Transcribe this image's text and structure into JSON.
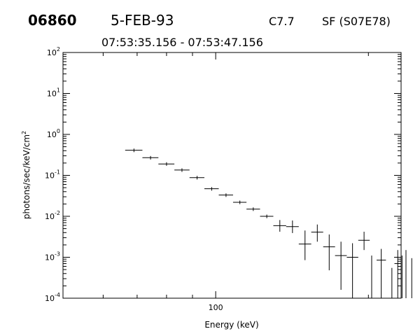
{
  "header": {
    "event_id": "06860",
    "date": "5-FEB-93",
    "goes_class": "C7.7",
    "location": "SF (S07E78)",
    "time_range": "07:53:35.156 - 07:53:47.156"
  },
  "chart_data": {
    "type": "scatter",
    "title": "",
    "xlabel": "Energy (keV)",
    "ylabel": "photons/sec/keV/cm",
    "ylabel_superscript": "2",
    "xscale": "log",
    "yscale": "log",
    "xlim": [
      50,
      232
    ],
    "ylim": [
      0.0001,
      100
    ],
    "x_tick_labels": [
      "100"
    ],
    "y_tick_mantissa": "10",
    "y_tick_exponents": [
      "-4",
      "-3",
      "-2",
      "-1",
      "0",
      "1",
      "2"
    ],
    "grid": false,
    "series": [
      {
        "points": [
          {
            "x": 69.0,
            "xlo": 66.3,
            "xhi": 71.7,
            "y": 0.41
          },
          {
            "x": 74.4,
            "xlo": 71.7,
            "xhi": 77.1,
            "y": 0.27
          },
          {
            "x": 80.0,
            "xlo": 77.1,
            "xhi": 82.9,
            "y": 0.19
          },
          {
            "x": 85.8,
            "xlo": 82.9,
            "xhi": 88.8,
            "y": 0.135
          },
          {
            "x": 91.9,
            "xlo": 88.8,
            "xhi": 95.0,
            "y": 0.088
          },
          {
            "x": 98.2,
            "xlo": 95.0,
            "xhi": 101.4,
            "y": 0.047
          },
          {
            "x": 104.8,
            "xlo": 101.4,
            "xhi": 108.2,
            "y": 0.033
          },
          {
            "x": 111.6,
            "xlo": 108.2,
            "xhi": 115.0,
            "y": 0.022
          },
          {
            "x": 118.6,
            "xlo": 115.0,
            "xhi": 122.3,
            "y": 0.015
          },
          {
            "x": 126.1,
            "xlo": 122.3,
            "xhi": 129.9,
            "y": 0.01
          },
          {
            "x": 133.8,
            "xlo": 129.9,
            "xhi": 137.7,
            "y": 0.0059,
            "ylo": 0.0042,
            "yhi": 0.0081
          },
          {
            "x": 141.7,
            "xlo": 137.7,
            "xhi": 145.8,
            "y": 0.0056,
            "ylo": 0.0039,
            "yhi": 0.0079
          },
          {
            "x": 150.0,
            "xlo": 145.8,
            "xhi": 154.3,
            "y": 0.0021,
            "ylo": 0.00085,
            "yhi": 0.0045
          },
          {
            "x": 158.6,
            "xlo": 154.3,
            "xhi": 162.9,
            "y": 0.0041,
            "ylo": 0.0024,
            "yhi": 0.0063
          },
          {
            "x": 167.4,
            "xlo": 162.9,
            "xhi": 171.9,
            "y": 0.0018,
            "ylo": 0.00048,
            "yhi": 0.0036
          },
          {
            "x": 176.6,
            "xlo": 171.9,
            "xhi": 181.3,
            "y": 0.0011,
            "ylo": 0.00016,
            "yhi": 0.0024
          },
          {
            "x": 186.1,
            "xlo": 181.3,
            "xhi": 191.0,
            "y": 0.001,
            "ylo": 0.0001,
            "yhi": 0.0022
          },
          {
            "x": 196.1,
            "xlo": 191.0,
            "xhi": 201.2,
            "y": 0.0026,
            "ylo": 0.0015,
            "yhi": 0.0042
          },
          {
            "x": 212.0,
            "xlo": 207.6,
            "xhi": 216.6,
            "y": 0.00085,
            "ylo": 0.0001,
            "yhi": 0.0016
          },
          {
            "x": 228.5,
            "xlo": 225.1,
            "xhi": 230.5,
            "y": 0.0007,
            "ylo": 0.0001,
            "yhi": 0.0015
          },
          {
            "x": 233.0,
            "xlo": 230.8,
            "xhi": 235.2,
            "y": 0.0003,
            "ylo": 0.0001,
            "yhi": 0.0011
          },
          {
            "x": 237.2,
            "xlo": 234.6,
            "xhi": 239.8,
            "y": 0.0007,
            "ylo": 0.0001,
            "yhi": 0.0015
          }
        ],
        "upper_only_bars": [
          {
            "x": 203.0,
            "yhi": 0.0011
          },
          {
            "x": 222.5,
            "yhi": 0.00055
          },
          {
            "x": 243.5,
            "yhi": 0.00095
          },
          {
            "x": 254.5,
            "yhi": 0.00055
          }
        ]
      }
    ]
  }
}
